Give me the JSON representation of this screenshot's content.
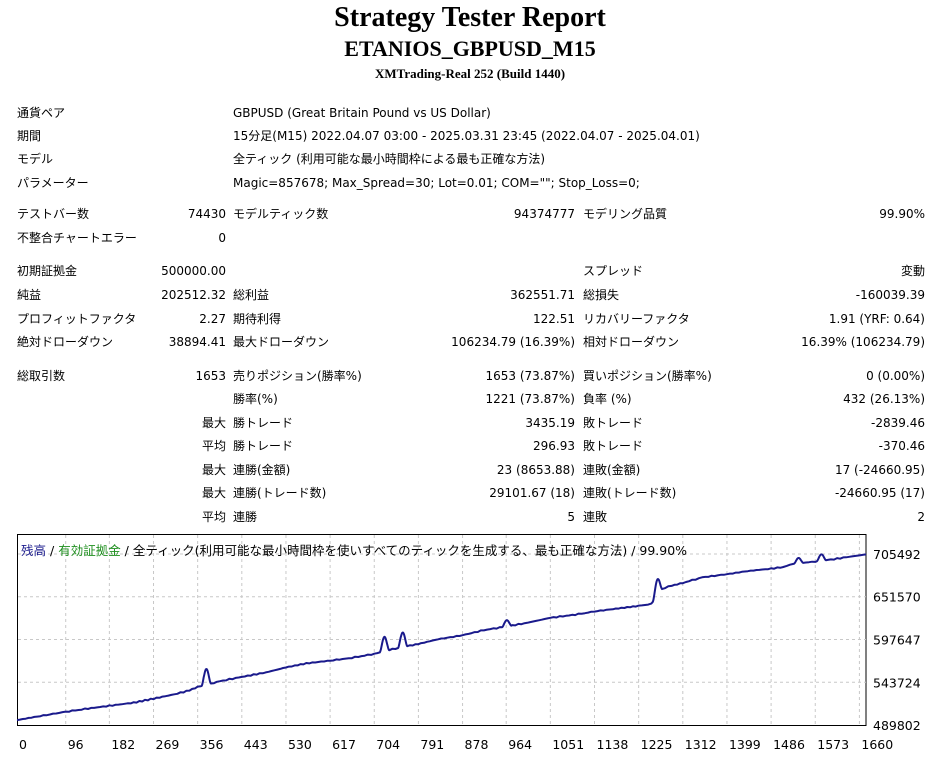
{
  "header": {
    "title": "Strategy Tester Report",
    "subtitle": "ETANIOS_GBPUSD_M15",
    "build": "XMTrading-Real 252 (Build 1440)"
  },
  "info": [
    {
      "label": "通貨ペア",
      "value": "GBPUSD (Great Britain Pound vs US Dollar)"
    },
    {
      "label": "期間",
      "value": "15分足(M15) 2022.04.07 03:00 - 2025.03.31 23:45 (2022.04.07 - 2025.04.01)"
    },
    {
      "label": "モデル",
      "value": "全ティック (利用可能な最小時間枠による最も正確な方法)"
    },
    {
      "label": "パラメーター",
      "value": "Magic=857678; Max_Spread=30; Lot=0.01; COM=\"\"; Stop_Loss=0;"
    }
  ],
  "stats": {
    "bars_label": "テストバー数",
    "bars": "74430",
    "ticks_label": "モデルティック数",
    "ticks": "94374777",
    "quality_label": "モデリング品質",
    "quality": "99.90%",
    "mismatch_label": "不整合チャートエラー",
    "mismatch": "0",
    "deposit_label": "初期証拠金",
    "deposit": "500000.00",
    "spread_label": "スプレッド",
    "spread": "変動",
    "net_label": "純益",
    "net": "202512.32",
    "gross_profit_label": "総利益",
    "gross_profit": "362551.71",
    "gross_loss_label": "総損失",
    "gross_loss": "-160039.39",
    "pf_label": "プロフィットファクタ",
    "pf": "2.27",
    "expected_label": "期待利得",
    "expected": "122.51",
    "recovery_label": "リカバリーファクタ",
    "recovery": "1.91 (YRF: 0.64)",
    "abs_dd_label": "絶対ドローダウン",
    "abs_dd": "38894.41",
    "max_dd_label": "最大ドローダウン",
    "max_dd": "106234.79 (16.39%)",
    "rel_dd_label": "相対ドローダウン",
    "rel_dd": "16.39% (106234.79)",
    "total_trades_label": "総取引数",
    "total_trades": "1653",
    "short_label": "売りポジション(勝率%)",
    "short": "1653 (73.87%)",
    "long_label": "買いポジション(勝率%)",
    "long": "0 (0.00%)",
    "win_rate_label": "勝率(%)",
    "win_rate": "1221 (73.87%)",
    "loss_rate_label": "負率 (%)",
    "loss_rate": "432 (26.13%)"
  },
  "detail_rows": [
    {
      "prefix": "最大",
      "left_label": "勝トレード",
      "left_value": "3435.19",
      "right_label": "敗トレード",
      "right_value": "-2839.46"
    },
    {
      "prefix": "平均",
      "left_label": "勝トレード",
      "left_value": "296.93",
      "right_label": "敗トレード",
      "right_value": "-370.46"
    },
    {
      "prefix": "最大",
      "left_label": "連勝(金額)",
      "left_value": "23 (8653.88)",
      "right_label": "連敗(金額)",
      "right_value": "17 (-24660.95)"
    },
    {
      "prefix": "最大",
      "left_label": "連勝(トレード数)",
      "left_value": "29101.67 (18)",
      "right_label": "連敗(トレード数)",
      "right_value": "-24660.95 (17)"
    },
    {
      "prefix": "平均",
      "left_label": "連勝",
      "left_value": "5",
      "right_label": "連敗",
      "right_value": "2"
    }
  ],
  "legend": {
    "balance": "残高",
    "sep1": " / ",
    "equity": "有効証拠金",
    "rest": " / 全ティック(利用可能な最小時間枠を使いすべてのティックを生成する、最も正確な方法) / 99.90%"
  },
  "colors": {
    "line": "#1a1a8c",
    "grid": "#c8c8c8",
    "equity": "#1f8f1f"
  },
  "chart_data": {
    "type": "line",
    "xlabel": "",
    "ylabel": "",
    "x_ticks": [
      0,
      96,
      182,
      269,
      356,
      443,
      530,
      617,
      704,
      791,
      878,
      964,
      1051,
      1138,
      1225,
      1312,
      1399,
      1486,
      1573,
      1660
    ],
    "y_ticks": [
      489802,
      543724,
      597647,
      651570,
      705492
    ],
    "xlim": [
      0,
      1673
    ],
    "ylim": [
      489802,
      720000
    ],
    "series": [
      {
        "name": "残高",
        "x": [
          0,
          40,
          96,
          140,
          182,
          230,
          269,
          310,
          340,
          356,
          375,
          400,
          443,
          490,
          530,
          570,
          617,
          660,
          704,
          740,
          791,
          830,
          878,
          920,
          964,
          1000,
          1051,
          1100,
          1138,
          1180,
          1225,
          1250,
          1270,
          1290,
          1312,
          1350,
          1399,
          1440,
          1486,
          1510,
          1530,
          1573,
          1610,
          1640,
          1673
        ],
        "y": [
          496000,
          500500,
          506500,
          510500,
          514000,
          518000,
          523000,
          528500,
          533500,
          537800,
          541000,
          545000,
          550500,
          556000,
          562500,
          567500,
          571000,
          574500,
          579500,
          585500,
          592000,
          598000,
          603000,
          609500,
          614000,
          618000,
          625000,
          629000,
          633000,
          636500,
          640000,
          642500,
          661000,
          665500,
          669000,
          676000,
          680000,
          684000,
          687000,
          689000,
          693000,
          696000,
          699000,
          702000,
          705000
        ]
      }
    ],
    "spikes": [
      {
        "x": 373,
        "peak": 560500
      },
      {
        "x": 724,
        "peak": 601000
      },
      {
        "x": 760,
        "peak": 606500
      },
      {
        "x": 965,
        "peak": 622000
      },
      {
        "x": 1262,
        "peak": 673500
      },
      {
        "x": 1540,
        "peak": 700500
      },
      {
        "x": 1585,
        "peak": 705000
      }
    ]
  }
}
